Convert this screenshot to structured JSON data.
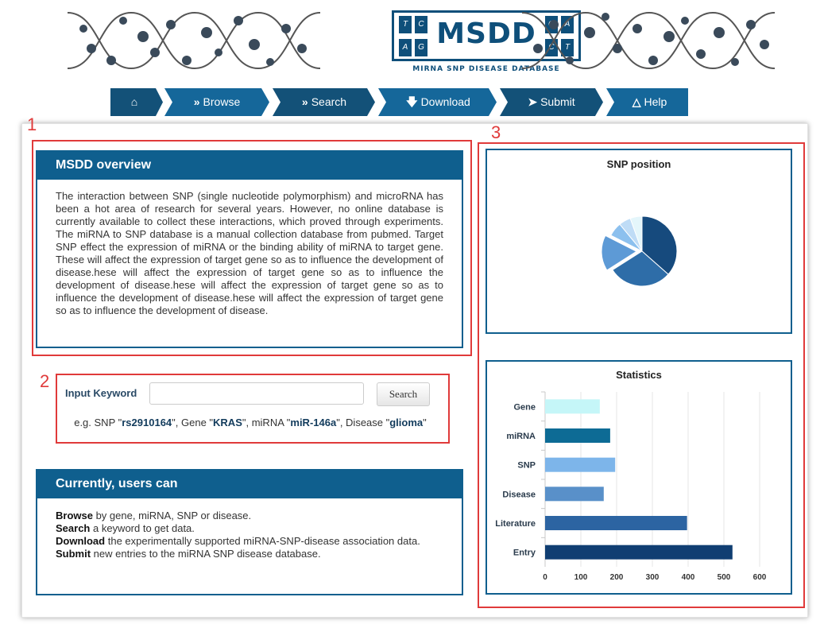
{
  "brand": {
    "logo_title": "MSDD",
    "logo_letters": [
      "T",
      "C",
      "A",
      "G",
      "G",
      "A",
      "C",
      "T"
    ],
    "logo_subtitle": "MIRNA SNP DISEASE DATABASE",
    "colors": {
      "primary": "#0f5f8e",
      "dark": "#0b3f66",
      "annotation_red": "#e03a3a"
    }
  },
  "nav": {
    "items": [
      {
        "label": "",
        "icon": "home-icon",
        "color": "#135178"
      },
      {
        "label": "Browse",
        "icon": "double-chevron-icon",
        "color": "#15679a"
      },
      {
        "label": "Search",
        "icon": "double-chevron-icon",
        "color": "#135178"
      },
      {
        "label": "Download",
        "icon": "download-icon",
        "color": "#15679a"
      },
      {
        "label": "Submit",
        "icon": "rocket-icon",
        "color": "#135178"
      },
      {
        "label": "Help",
        "icon": "flask-icon",
        "color": "#15679a"
      }
    ]
  },
  "annotations": {
    "box1": "1",
    "box2": "2",
    "box3": "3"
  },
  "overview": {
    "title": "MSDD overview",
    "text": "The interaction between SNP (single nucleotide polymorphism) and microRNA has been a hot area of research for several years. However, no online database is currently available to collect these interactions, which proved through experiments. The miRNA to SNP database is a manual collection database from pubmed. Target SNP effect the expression of miRNA or the binding ability of miRNA to target gene. These will affect the expression of target gene so as to influence the development of disease.hese will affect the expression of target gene so as to influence the development of disease.hese will affect the expression of target gene so as to influence the development of disease.hese will affect the expression of target gene so as to influence the development of disease."
  },
  "search": {
    "label": "Input Keyword",
    "input_value": "",
    "button": "Search",
    "examples": {
      "prefix_snp": "e.g. SNP \"",
      "snp": "rs2910164",
      "prefix_gene": "\", Gene \"",
      "gene": "KRAS",
      "prefix_mirna": "\", miRNA \"",
      "mirna": "miR-146a",
      "prefix_disease": "\", Disease \"",
      "disease": "glioma",
      "suffix": "\""
    }
  },
  "capabilities": {
    "title": "Currently, users can",
    "items": [
      {
        "bold": "Browse",
        "rest": " by gene, miRNA, SNP or disease."
      },
      {
        "bold": "Search",
        "rest": " a keyword to get data."
      },
      {
        "bold": "Download",
        "rest": " the experimentally supported miRNA-SNP-disease association data."
      },
      {
        "bold": "Submit",
        "rest": " new entries to the miRNA SNP disease database."
      }
    ]
  },
  "chart_data": [
    {
      "type": "pie",
      "title": "SNP position",
      "slices": [
        {
          "value": 36.5,
          "color": "#164a7d"
        },
        {
          "value": 29.5,
          "color": "#2e6da8"
        },
        {
          "value": 16.5,
          "color": "#5d9ad6",
          "exploded": true
        },
        {
          "value": 6.5,
          "color": "#8cc0ee"
        },
        {
          "value": 5.5,
          "color": "#bfdcf6"
        },
        {
          "value": 5.5,
          "color": "#e4f6fb"
        }
      ]
    },
    {
      "type": "bar",
      "orientation": "horizontal",
      "title": "Statistics",
      "categories": [
        "Gene",
        "miRNA",
        "SNP",
        "Disease",
        "Literature",
        "Entry"
      ],
      "values": [
        153,
        182,
        196,
        164,
        397,
        524
      ],
      "colors": [
        "#c5f6f8",
        "#0d6b95",
        "#7db5ea",
        "#5990c9",
        "#2c64a2",
        "#103e72"
      ],
      "xlim": [
        0,
        600
      ],
      "xticks": [
        "0",
        "100",
        "200",
        "300",
        "400",
        "500",
        "600"
      ],
      "grid": true
    }
  ]
}
